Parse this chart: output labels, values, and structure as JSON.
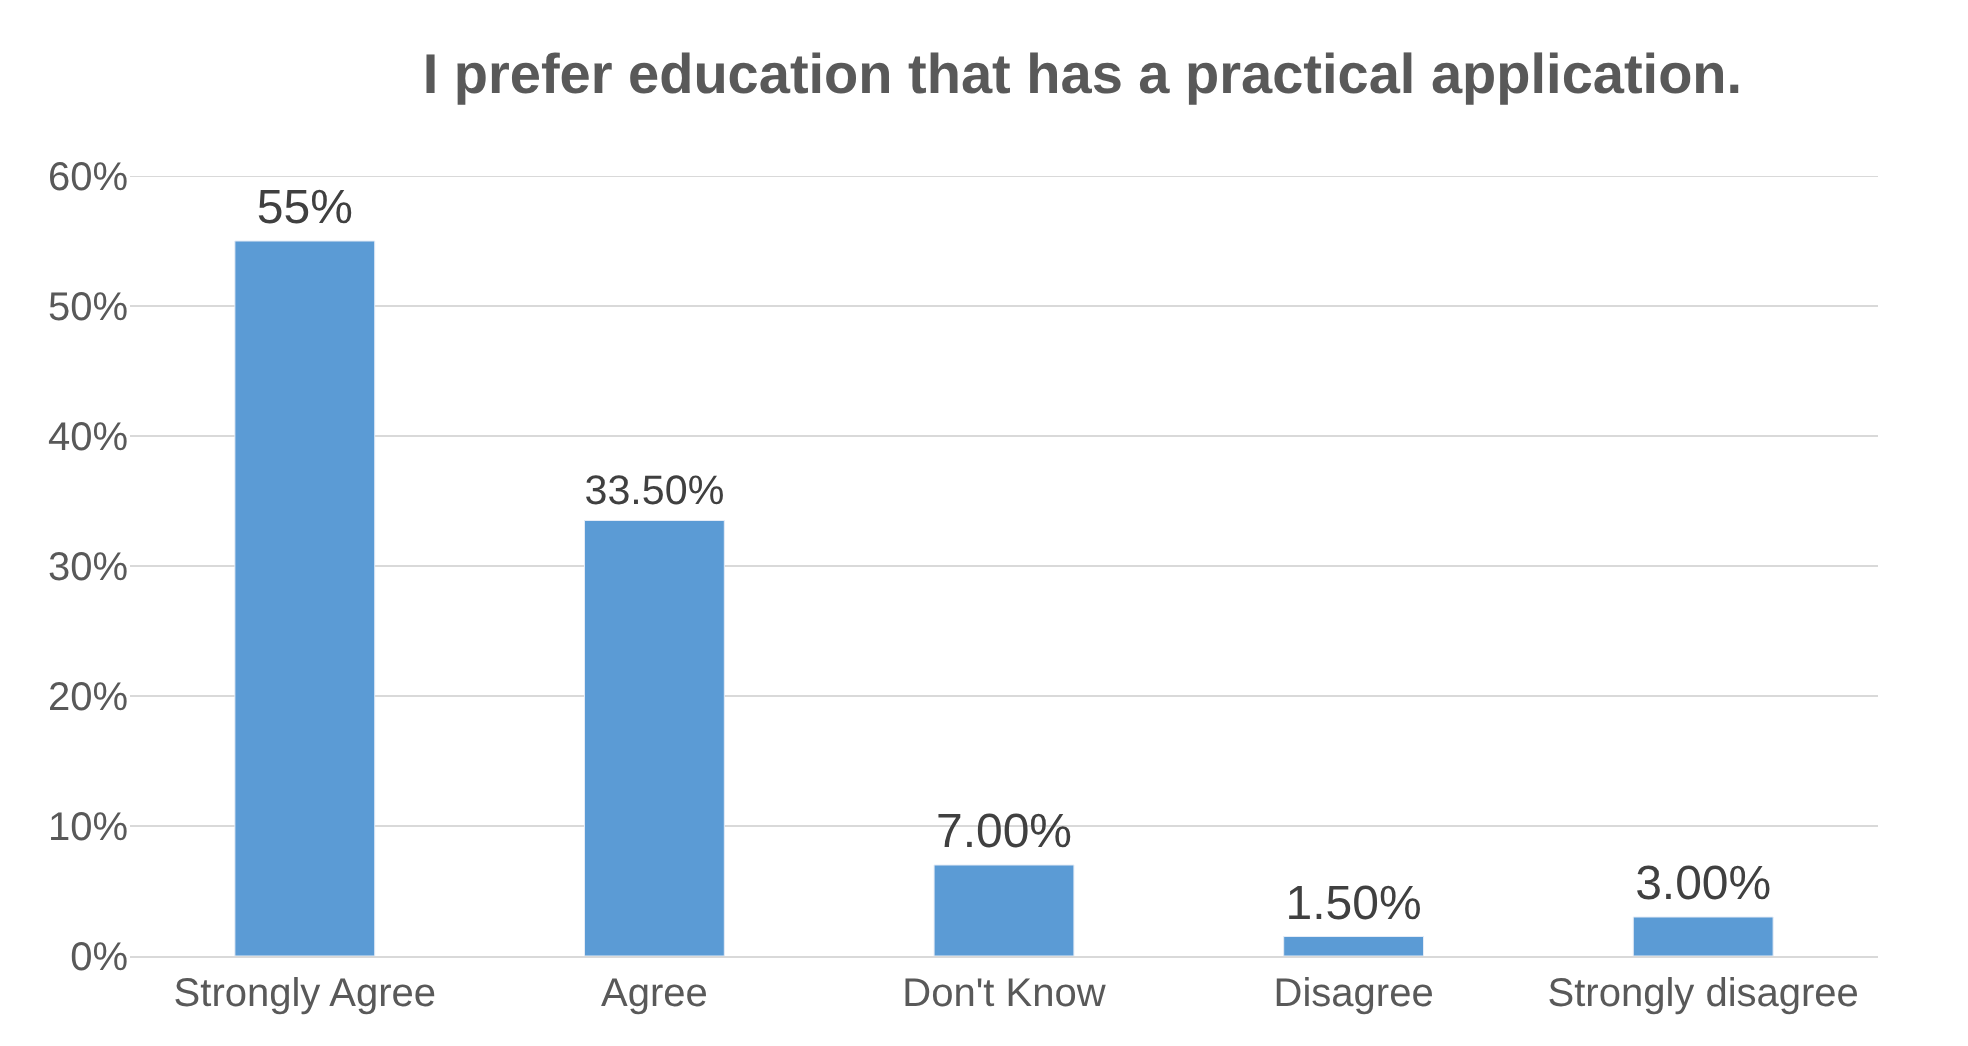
{
  "chart_data": {
    "type": "bar",
    "title": "I prefer education that has a practical application.",
    "categories": [
      "Strongly Agree",
      "Agree",
      "Don't Know",
      "Disagree",
      "Strongly disagree"
    ],
    "values": [
      55,
      33.5,
      7,
      1.5,
      3
    ],
    "value_labels": [
      "55%",
      "33.50%",
      "7.00%",
      "1.50%",
      "3.00%"
    ],
    "color": "#5b9bd5",
    "ylim": [
      0,
      60
    ],
    "yticks": [
      {
        "value": 0,
        "label": "0%"
      },
      {
        "value": 10,
        "label": "10%"
      },
      {
        "value": 20,
        "label": "20%"
      },
      {
        "value": 30,
        "label": "30%"
      },
      {
        "value": 40,
        "label": "40%"
      },
      {
        "value": 50,
        "label": "50%"
      },
      {
        "value": 60,
        "label": "60%"
      }
    ],
    "grid": "y"
  }
}
